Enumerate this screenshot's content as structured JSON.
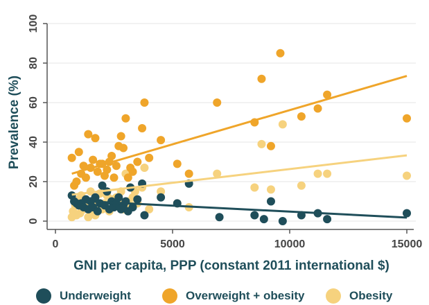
{
  "chart_data": {
    "type": "scatter",
    "xlabel": "GNI per capita, PPP (constant 2011 international $)",
    "ylabel": "Prevalence (%)",
    "xlim": [
      0,
      15000
    ],
    "ylim": [
      0,
      100
    ],
    "xticks": [
      0,
      5000,
      10000,
      15000
    ],
    "yticks": [
      0,
      20,
      40,
      60,
      80,
      100
    ],
    "x_tick_labels": [
      "0",
      "5000",
      "10000",
      "15000"
    ],
    "y_tick_labels": [
      "0",
      "20",
      "40",
      "60",
      "80",
      "100"
    ],
    "grid": "horizontal",
    "legend_position": "bottom",
    "series": [
      {
        "name": "Underweight",
        "color": "#1f4e5a",
        "trend": [
          [
            700,
            10.4
          ],
          [
            15000,
            1.8
          ]
        ],
        "points": [
          [
            700,
            13
          ],
          [
            800,
            10
          ],
          [
            900,
            9
          ],
          [
            1000,
            8
          ],
          [
            1100,
            9
          ],
          [
            1200,
            7
          ],
          [
            1300,
            11
          ],
          [
            1400,
            6
          ],
          [
            1500,
            10
          ],
          [
            1600,
            7
          ],
          [
            1700,
            12
          ],
          [
            1800,
            5
          ],
          [
            1900,
            9
          ],
          [
            2000,
            18
          ],
          [
            2100,
            8
          ],
          [
            2200,
            15
          ],
          [
            2300,
            6
          ],
          [
            2400,
            10
          ],
          [
            2500,
            7
          ],
          [
            2600,
            9
          ],
          [
            2700,
            12
          ],
          [
            2800,
            6
          ],
          [
            2900,
            8
          ],
          [
            3000,
            10
          ],
          [
            3100,
            5
          ],
          [
            3200,
            17
          ],
          [
            3300,
            7
          ],
          [
            3500,
            11
          ],
          [
            3700,
            19
          ],
          [
            3800,
            3
          ],
          [
            4500,
            12
          ],
          [
            5200,
            9
          ],
          [
            5700,
            19
          ],
          [
            7000,
            2
          ],
          [
            8500,
            3
          ],
          [
            8900,
            1
          ],
          [
            9200,
            10
          ],
          [
            9700,
            0
          ],
          [
            10500,
            3
          ],
          [
            11200,
            4
          ],
          [
            11600,
            1
          ],
          [
            15000,
            4
          ]
        ]
      },
      {
        "name": "Overweight + obesity",
        "color": "#efa52a",
        "trend": [
          [
            700,
            24
          ],
          [
            15000,
            73.5
          ]
        ],
        "points": [
          [
            700,
            32
          ],
          [
            800,
            18
          ],
          [
            900,
            20
          ],
          [
            1000,
            35
          ],
          [
            1100,
            24
          ],
          [
            1200,
            28
          ],
          [
            1300,
            22
          ],
          [
            1400,
            44
          ],
          [
            1500,
            27
          ],
          [
            1600,
            31
          ],
          [
            1700,
            42
          ],
          [
            1800,
            25
          ],
          [
            1900,
            29
          ],
          [
            2000,
            29
          ],
          [
            2100,
            23
          ],
          [
            2200,
            26
          ],
          [
            2300,
            30
          ],
          [
            2400,
            33
          ],
          [
            2500,
            22
          ],
          [
            2600,
            28
          ],
          [
            2700,
            38
          ],
          [
            2800,
            43
          ],
          [
            2900,
            37
          ],
          [
            3000,
            52
          ],
          [
            3100,
            22
          ],
          [
            3200,
            27
          ],
          [
            3300,
            25
          ],
          [
            3500,
            30
          ],
          [
            3700,
            47
          ],
          [
            3800,
            60
          ],
          [
            4000,
            32
          ],
          [
            4500,
            41
          ],
          [
            5200,
            29
          ],
          [
            5700,
            24
          ],
          [
            6900,
            60
          ],
          [
            8500,
            50
          ],
          [
            8800,
            72
          ],
          [
            9200,
            38
          ],
          [
            9600,
            85
          ],
          [
            10500,
            53
          ],
          [
            11200,
            57
          ],
          [
            11600,
            64
          ],
          [
            15000,
            52
          ]
        ]
      },
      {
        "name": "Obesity",
        "color": "#f6d27e",
        "trend": [
          [
            700,
            13.4
          ],
          [
            15000,
            33.3
          ]
        ],
        "points": [
          [
            700,
            2
          ],
          [
            750,
            5
          ],
          [
            800,
            4
          ],
          [
            850,
            8
          ],
          [
            900,
            3
          ],
          [
            1000,
            11
          ],
          [
            1050,
            4
          ],
          [
            1100,
            13
          ],
          [
            1200,
            6
          ],
          [
            1300,
            9
          ],
          [
            1400,
            2
          ],
          [
            1500,
            15
          ],
          [
            1550,
            5
          ],
          [
            1600,
            10
          ],
          [
            1700,
            3
          ],
          [
            1800,
            8
          ],
          [
            1900,
            14
          ],
          [
            2000,
            6
          ],
          [
            2100,
            9
          ],
          [
            2200,
            13
          ],
          [
            2300,
            5
          ],
          [
            2400,
            11
          ],
          [
            2500,
            7
          ],
          [
            2600,
            12
          ],
          [
            2700,
            9
          ],
          [
            2800,
            15
          ],
          [
            2900,
            6
          ],
          [
            3000,
            24
          ],
          [
            3100,
            10
          ],
          [
            3200,
            8
          ],
          [
            3300,
            12
          ],
          [
            3400,
            15
          ],
          [
            3500,
            9
          ],
          [
            3700,
            17
          ],
          [
            3800,
            27
          ],
          [
            4000,
            6
          ],
          [
            4500,
            15
          ],
          [
            5200,
            9
          ],
          [
            5700,
            7
          ],
          [
            6900,
            24
          ],
          [
            8500,
            17
          ],
          [
            8800,
            39
          ],
          [
            9200,
            16
          ],
          [
            9700,
            49
          ],
          [
            10500,
            18
          ],
          [
            11200,
            24
          ],
          [
            11600,
            24
          ],
          [
            15000,
            23
          ]
        ]
      }
    ]
  }
}
